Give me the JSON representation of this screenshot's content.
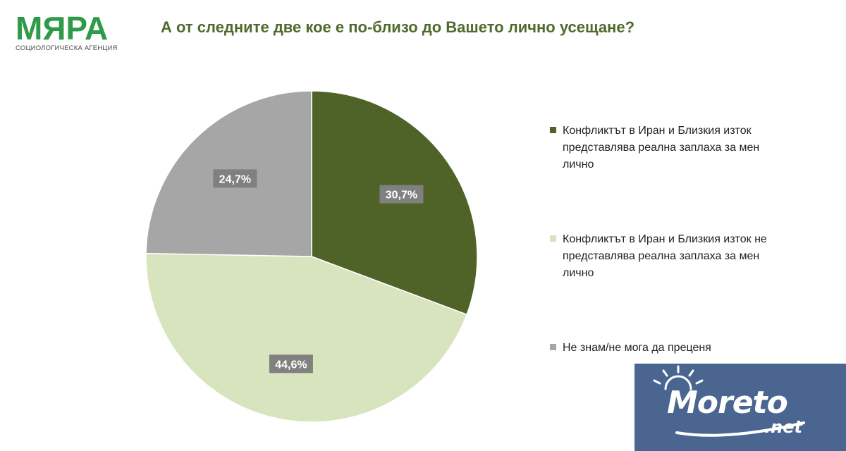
{
  "logo": {
    "name": "МЯРА",
    "subtitle": "СОЦИОЛОГИЧЕСКА АГЕНЦИЯ"
  },
  "title": "А от следните две кое е по-близо до Вашето лично усещане?",
  "chart_data": {
    "type": "pie",
    "title": "А от следните две кое е по-близо до Вашето лично усещане?",
    "slices": [
      {
        "label": "Конфликтът в Иран и Близкия изток представлява реална заплаха за мен лично",
        "value": 30.7,
        "value_label": "30,7%",
        "color": "#4f6228"
      },
      {
        "label": "Конфликтът в Иран и Близкия изток не представлява реална заплаха за мен лично",
        "value": 44.6,
        "value_label": "44,6%",
        "color": "#d7e4bd"
      },
      {
        "label": "Не знам/не мога да преценя",
        "value": 24.7,
        "value_label": "24,7%",
        "color": "#a6a6a6"
      }
    ],
    "legend_position": "right",
    "data_label_color": "#808080"
  },
  "watermark": {
    "text": "Moreto",
    "suffix": ".net"
  }
}
